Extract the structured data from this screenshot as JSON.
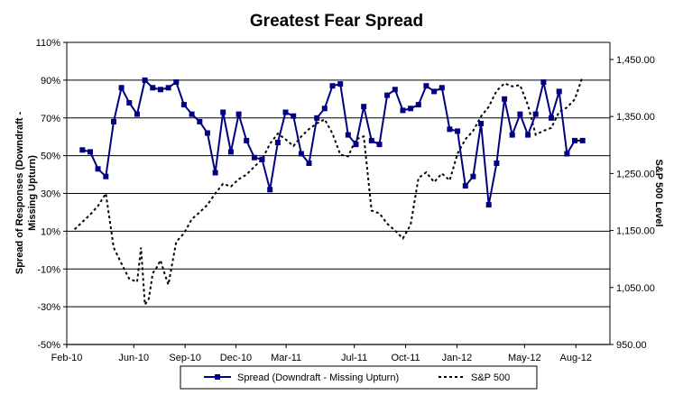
{
  "chart_data": {
    "type": "line",
    "title": "Greatest Fear Spread",
    "ylabel": "Spread of Responses (Downdraft - Missing Upturn)",
    "y2label": "S&P 500 Level",
    "xlabel": "",
    "ylim": [
      -50,
      110
    ],
    "y_ticks": [
      "110%",
      "90%",
      "70%",
      "50%",
      "30%",
      "10%",
      "-10%",
      "-30%",
      "-50%"
    ],
    "y_tick_values": [
      110,
      90,
      70,
      50,
      30,
      10,
      -10,
      -30,
      -50
    ],
    "y2lim": [
      950,
      1480
    ],
    "y2_ticks": [
      "1,450.00",
      "1,350.00",
      "1,250.00",
      "1,150.00",
      "1,050.00",
      "950.00"
    ],
    "y2_tick_values": [
      1450,
      1350,
      1250,
      1150,
      1050,
      950
    ],
    "x_ticks": [
      "Feb-10",
      "Jun-10",
      "Sep-10",
      "Dec-10",
      "Mar-11",
      "Jul-11",
      "Oct-11",
      "Jan-12",
      "May-12",
      "Aug-12"
    ],
    "x_tick_values": [
      "2010-02-01",
      "2010-06-01",
      "2010-09-01",
      "2010-12-01",
      "2011-03-01",
      "2011-07-01",
      "2011-10-01",
      "2012-01-01",
      "2012-05-01",
      "2012-08-01"
    ],
    "xlim": [
      "2010-02-01",
      "2012-10-01"
    ],
    "gridlines": "horizontal",
    "legend_position": "bottom",
    "series": [
      {
        "name": "Spread (Downdraft - Missing Upturn)",
        "color": "#000080",
        "style": "solid-square-markers",
        "axis": "left",
        "x": [
          "2010-03-01",
          "2010-03-15",
          "2010-03-29",
          "2010-04-12",
          "2010-04-26",
          "2010-05-10",
          "2010-05-24",
          "2010-06-07",
          "2010-06-21",
          "2010-07-05",
          "2010-07-19",
          "2010-08-02",
          "2010-08-16",
          "2010-08-30",
          "2010-09-13",
          "2010-09-27",
          "2010-10-11",
          "2010-10-25",
          "2010-11-08",
          "2010-11-22",
          "2010-12-06",
          "2010-12-20",
          "2011-01-03",
          "2011-01-17",
          "2011-01-31",
          "2011-02-14",
          "2011-02-28",
          "2011-03-14",
          "2011-03-28",
          "2011-04-11",
          "2011-04-25",
          "2011-05-09",
          "2011-05-23",
          "2011-06-06",
          "2011-06-20",
          "2011-07-04",
          "2011-07-18",
          "2011-08-01",
          "2011-08-15",
          "2011-08-29",
          "2011-09-12",
          "2011-09-26",
          "2011-10-10",
          "2011-10-24",
          "2011-11-07",
          "2011-11-21",
          "2011-12-05",
          "2011-12-19",
          "2012-01-02",
          "2012-01-16",
          "2012-01-30",
          "2012-02-13",
          "2012-02-27",
          "2012-03-12",
          "2012-03-26",
          "2012-04-09",
          "2012-04-23",
          "2012-05-07",
          "2012-05-21",
          "2012-06-04",
          "2012-06-18",
          "2012-07-02",
          "2012-07-16",
          "2012-07-30",
          "2012-08-13"
        ],
        "values": [
          53,
          52,
          43,
          39,
          68,
          86,
          78,
          72,
          90,
          86,
          85,
          86,
          89,
          77,
          72,
          68,
          62,
          41,
          73,
          52,
          72,
          58,
          49,
          48,
          32,
          57,
          73,
          71,
          51,
          46,
          70,
          75,
          87,
          88,
          61,
          56,
          76,
          58,
          56,
          82,
          85,
          74,
          75,
          77,
          87,
          84,
          86,
          64,
          63,
          34,
          39,
          67,
          24,
          46,
          80,
          61,
          72,
          61,
          72,
          89,
          70,
          84,
          51,
          58,
          58
        ]
      },
      {
        "name": "S&P 500",
        "color": "#000000",
        "style": "dotted",
        "axis": "right",
        "x": [
          "2010-02-15",
          "2010-03-01",
          "2010-03-15",
          "2010-03-29",
          "2010-04-12",
          "2010-04-26",
          "2010-05-10",
          "2010-05-24",
          "2010-06-07",
          "2010-06-14",
          "2010-06-21",
          "2010-06-28",
          "2010-07-05",
          "2010-07-12",
          "2010-07-19",
          "2010-07-26",
          "2010-08-02",
          "2010-08-16",
          "2010-08-30",
          "2010-09-13",
          "2010-09-27",
          "2010-10-11",
          "2010-10-25",
          "2010-11-08",
          "2010-11-22",
          "2010-12-06",
          "2010-12-20",
          "2011-01-03",
          "2011-01-17",
          "2011-01-31",
          "2011-02-14",
          "2011-02-28",
          "2011-03-14",
          "2011-03-28",
          "2011-04-11",
          "2011-04-25",
          "2011-05-09",
          "2011-05-23",
          "2011-06-06",
          "2011-06-20",
          "2011-07-04",
          "2011-07-18",
          "2011-08-01",
          "2011-08-15",
          "2011-08-29",
          "2011-09-12",
          "2011-09-26",
          "2011-10-10",
          "2011-10-24",
          "2011-11-07",
          "2011-11-21",
          "2011-12-05",
          "2011-12-19",
          "2012-01-02",
          "2012-01-16",
          "2012-01-30",
          "2012-02-13",
          "2012-02-27",
          "2012-03-12",
          "2012-03-26",
          "2012-04-09",
          "2012-04-23",
          "2012-05-07",
          "2012-05-21",
          "2012-06-04",
          "2012-06-18",
          "2012-07-02",
          "2012-07-16",
          "2012-07-30",
          "2012-08-13"
        ],
        "values": [
          1152,
          1165,
          1178,
          1193,
          1215,
          1120,
          1092,
          1065,
          1060,
          1120,
          1020,
          1030,
          1075,
          1085,
          1098,
          1075,
          1055,
          1130,
          1145,
          1170,
          1182,
          1195,
          1215,
          1232,
          1227,
          1240,
          1248,
          1262,
          1275,
          1302,
          1320,
          1310,
          1298,
          1315,
          1328,
          1338,
          1345,
          1320,
          1283,
          1280,
          1310,
          1315,
          1185,
          1180,
          1162,
          1150,
          1136,
          1160,
          1242,
          1252,
          1235,
          1250,
          1238,
          1285,
          1310,
          1325,
          1350,
          1367,
          1395,
          1408,
          1403,
          1405,
          1370,
          1318,
          1325,
          1330,
          1358,
          1366,
          1380,
          1420
        ]
      }
    ]
  }
}
